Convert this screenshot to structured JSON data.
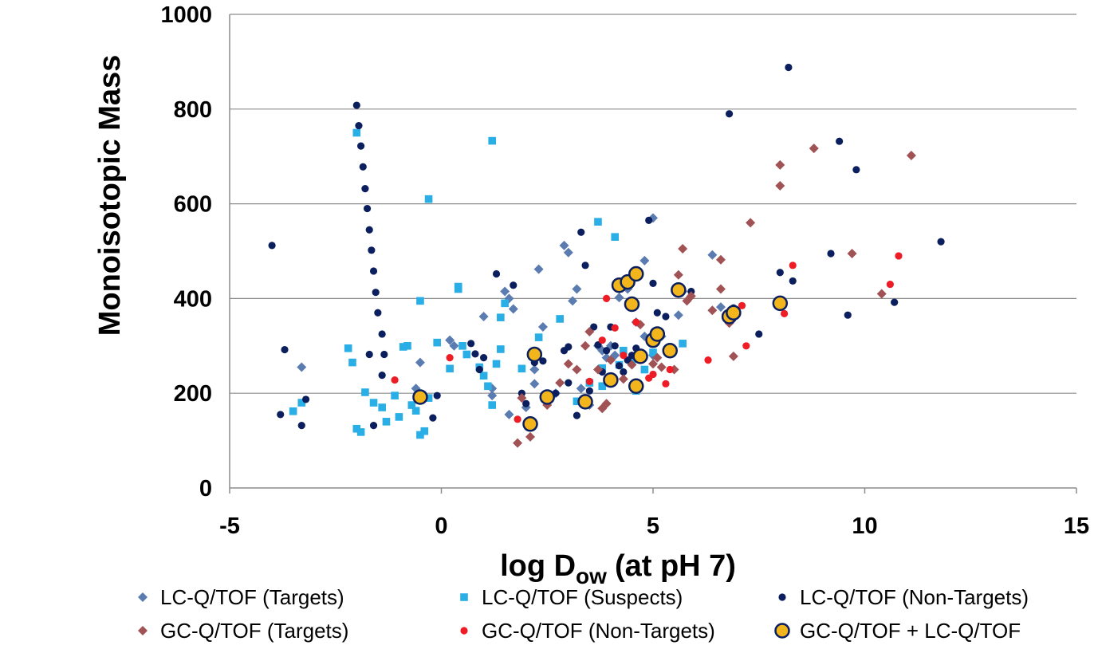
{
  "chart_data": {
    "type": "scatter",
    "title": "",
    "xlabel": "log D",
    "xlabel_sub": "ow",
    "xlabel_suffix": "(at pH 7)",
    "ylabel": "Monoisotopic Mass",
    "xlim": [
      -5,
      15
    ],
    "ylim": [
      0,
      1000
    ],
    "xticks": [
      -5,
      0,
      5,
      10,
      15
    ],
    "yticks": [
      0,
      200,
      400,
      600,
      800,
      1000
    ],
    "grid": "horizontal",
    "legend_position": "bottom",
    "series": [
      {
        "name": "LC-Q/TOF (Targets)",
        "marker": "diamond",
        "color": "#5b7cb0",
        "points": [
          [
            -3.3,
            255
          ],
          [
            0.2,
            312
          ],
          [
            0.3,
            300
          ],
          [
            -0.5,
            265
          ],
          [
            -0.6,
            210
          ],
          [
            1.0,
            362
          ],
          [
            1.5,
            415
          ],
          [
            1.6,
            400
          ],
          [
            1.7,
            378
          ],
          [
            1.2,
            210
          ],
          [
            1.2,
            195
          ],
          [
            1.6,
            155
          ],
          [
            2.0,
            170
          ],
          [
            2.3,
            462
          ],
          [
            2.2,
            250
          ],
          [
            2.2,
            220
          ],
          [
            2.4,
            340
          ],
          [
            2.9,
            512
          ],
          [
            3.0,
            497
          ],
          [
            3.1,
            395
          ],
          [
            3.2,
            420
          ],
          [
            3.3,
            210
          ],
          [
            3.5,
            175
          ],
          [
            3.7,
            300
          ],
          [
            3.8,
            290
          ],
          [
            3.9,
            275
          ],
          [
            4.0,
            300
          ],
          [
            4.1,
            280
          ],
          [
            4.2,
            402
          ],
          [
            4.4,
            420
          ],
          [
            4.5,
            390
          ],
          [
            4.6,
            350
          ],
          [
            4.8,
            320
          ],
          [
            4.8,
            480
          ],
          [
            5.0,
            570
          ],
          [
            5.2,
            320
          ],
          [
            5.0,
            280
          ],
          [
            5.6,
            365
          ],
          [
            5.7,
            415
          ],
          [
            6.4,
            492
          ],
          [
            6.6,
            382
          ],
          [
            2.7,
            200
          ],
          [
            2.5,
            190
          ]
        ]
      },
      {
        "name": "LC-Q/TOF (Suspects)",
        "marker": "square",
        "color": "#29aee6",
        "points": [
          [
            -2.2,
            295
          ],
          [
            -2.1,
            265
          ],
          [
            -2.0,
            750
          ],
          [
            -2.0,
            125
          ],
          [
            -1.9,
            118
          ],
          [
            -1.8,
            202
          ],
          [
            -1.6,
            180
          ],
          [
            -1.4,
            170
          ],
          [
            -1.3,
            140
          ],
          [
            -1.1,
            195
          ],
          [
            -1.0,
            150
          ],
          [
            -0.8,
            300
          ],
          [
            -0.7,
            175
          ],
          [
            -0.6,
            163
          ],
          [
            -0.5,
            112
          ],
          [
            -0.4,
            120
          ],
          [
            -0.3,
            190
          ],
          [
            -0.3,
            610
          ],
          [
            -0.5,
            395
          ],
          [
            -0.1,
            307
          ],
          [
            0.2,
            252
          ],
          [
            0.4,
            420
          ],
          [
            0.4,
            425
          ],
          [
            0.5,
            300
          ],
          [
            0.9,
            255
          ],
          [
            1.0,
            237
          ],
          [
            1.1,
            215
          ],
          [
            1.2,
            175
          ],
          [
            1.3,
            262
          ],
          [
            1.4,
            360
          ],
          [
            1.4,
            293
          ],
          [
            1.5,
            390
          ],
          [
            1.2,
            733
          ],
          [
            1.9,
            252
          ],
          [
            2.3,
            318
          ],
          [
            2.8,
            357
          ],
          [
            3.2,
            183
          ],
          [
            3.5,
            222
          ],
          [
            3.8,
            253
          ],
          [
            3.8,
            215
          ],
          [
            4.0,
            230
          ],
          [
            4.1,
            530
          ],
          [
            4.2,
            260
          ],
          [
            4.3,
            290
          ],
          [
            4.5,
            267
          ],
          [
            4.6,
            205
          ],
          [
            5.0,
            286
          ],
          [
            5.7,
            305
          ],
          [
            3.7,
            562
          ],
          [
            4.8,
            250
          ],
          [
            -0.9,
            298
          ],
          [
            -3.5,
            162
          ],
          [
            -3.3,
            180
          ],
          [
            0.6,
            282
          ]
        ]
      },
      {
        "name": "LC-Q/TOF (Non-Targets)",
        "marker": "circle",
        "color": "#0b1f5e",
        "points": [
          [
            -4.0,
            512
          ],
          [
            -3.8,
            155
          ],
          [
            -3.7,
            292
          ],
          [
            -3.3,
            132
          ],
          [
            -3.2,
            187
          ],
          [
            -2.0,
            808
          ],
          [
            -1.95,
            765
          ],
          [
            -1.9,
            722
          ],
          [
            -1.85,
            678
          ],
          [
            -1.8,
            632
          ],
          [
            -1.75,
            590
          ],
          [
            -1.7,
            545
          ],
          [
            -1.65,
            502
          ],
          [
            -1.6,
            458
          ],
          [
            -1.55,
            413
          ],
          [
            -1.5,
            370
          ],
          [
            -1.4,
            325
          ],
          [
            -1.35,
            282
          ],
          [
            -1.4,
            238
          ],
          [
            -1.7,
            282
          ],
          [
            -1.6,
            132
          ],
          [
            -0.2,
            148
          ],
          [
            -0.1,
            195
          ],
          [
            0.7,
            305
          ],
          [
            0.8,
            283
          ],
          [
            0.9,
            250
          ],
          [
            1.0,
            275
          ],
          [
            1.3,
            452
          ],
          [
            1.7,
            428
          ],
          [
            1.9,
            200
          ],
          [
            2.0,
            178
          ],
          [
            2.2,
            265
          ],
          [
            2.4,
            268
          ],
          [
            2.9,
            290
          ],
          [
            3.0,
            298
          ],
          [
            3.0,
            222
          ],
          [
            3.2,
            153
          ],
          [
            3.3,
            540
          ],
          [
            3.4,
            470
          ],
          [
            3.6,
            340
          ],
          [
            3.7,
            302
          ],
          [
            3.8,
            245
          ],
          [
            3.9,
            290
          ],
          [
            4.0,
            340
          ],
          [
            4.1,
            300
          ],
          [
            4.2,
            258
          ],
          [
            4.3,
            245
          ],
          [
            4.4,
            270
          ],
          [
            4.5,
            280
          ],
          [
            4.6,
            295
          ],
          [
            4.9,
            565
          ],
          [
            5.0,
            432
          ],
          [
            5.1,
            370
          ],
          [
            5.3,
            362
          ],
          [
            5.9,
            415
          ],
          [
            6.8,
            790
          ],
          [
            6.9,
            380
          ],
          [
            7.5,
            325
          ],
          [
            8.2,
            888
          ],
          [
            8.0,
            455
          ],
          [
            8.3,
            437
          ],
          [
            9.2,
            495
          ],
          [
            9.4,
            732
          ],
          [
            9.6,
            365
          ],
          [
            9.8,
            672
          ],
          [
            10.7,
            392
          ],
          [
            11.8,
            520
          ],
          [
            2.7,
            200
          ],
          [
            3.5,
            205
          ]
        ]
      },
      {
        "name": "GC-Q/TOF (Targets)",
        "marker": "diamond",
        "color": "#a05254",
        "points": [
          [
            1.8,
            95
          ],
          [
            1.9,
            190
          ],
          [
            2.1,
            108
          ],
          [
            2.5,
            175
          ],
          [
            2.8,
            222
          ],
          [
            3.0,
            262
          ],
          [
            3.2,
            250
          ],
          [
            3.5,
            330
          ],
          [
            3.7,
            250
          ],
          [
            3.8,
            168
          ],
          [
            3.9,
            178
          ],
          [
            4.0,
            270
          ],
          [
            4.3,
            230
          ],
          [
            4.5,
            260
          ],
          [
            4.7,
            345
          ],
          [
            5.0,
            262
          ],
          [
            5.1,
            275
          ],
          [
            5.5,
            250
          ],
          [
            5.7,
            505
          ],
          [
            5.8,
            395
          ],
          [
            5.9,
            405
          ],
          [
            6.4,
            375
          ],
          [
            6.6,
            482
          ],
          [
            6.6,
            420
          ],
          [
            6.8,
            348
          ],
          [
            6.9,
            278
          ],
          [
            7.3,
            560
          ],
          [
            8.0,
            682
          ],
          [
            8.0,
            638
          ],
          [
            8.8,
            717
          ],
          [
            9.7,
            495
          ],
          [
            10.4,
            410
          ],
          [
            11.1,
            702
          ],
          [
            5.2,
            255
          ],
          [
            3.4,
            300
          ],
          [
            5.6,
            450
          ]
        ]
      },
      {
        "name": "GC-Q/TOF (Non-Targets)",
        "marker": "circle",
        "color": "#ee1c25",
        "points": [
          [
            -1.1,
            228
          ],
          [
            0.2,
            275
          ],
          [
            1.8,
            145
          ],
          [
            3.5,
            225
          ],
          [
            3.8,
            312
          ],
          [
            3.9,
            400
          ],
          [
            4.1,
            338
          ],
          [
            4.3,
            280
          ],
          [
            4.6,
            350
          ],
          [
            4.9,
            232
          ],
          [
            5.0,
            240
          ],
          [
            5.3,
            220
          ],
          [
            5.4,
            250
          ],
          [
            6.3,
            270
          ],
          [
            7.1,
            385
          ],
          [
            7.2,
            300
          ],
          [
            8.1,
            368
          ],
          [
            8.3,
            470
          ],
          [
            10.6,
            430
          ],
          [
            10.8,
            490
          ]
        ]
      },
      {
        "name": "GC-Q/TOF + LC-Q/TOF",
        "marker": "circle-large",
        "color": "#f2b51c",
        "edge": "#0b1f5e",
        "points": [
          [
            -0.5,
            192
          ],
          [
            2.1,
            135
          ],
          [
            2.2,
            282
          ],
          [
            2.5,
            192
          ],
          [
            3.4,
            182
          ],
          [
            4.0,
            228
          ],
          [
            4.2,
            428
          ],
          [
            4.4,
            435
          ],
          [
            4.5,
            388
          ],
          [
            4.6,
            452
          ],
          [
            4.6,
            215
          ],
          [
            4.7,
            278
          ],
          [
            5.0,
            312
          ],
          [
            5.1,
            325
          ],
          [
            5.4,
            290
          ],
          [
            5.6,
            418
          ],
          [
            6.8,
            362
          ],
          [
            6.9,
            370
          ],
          [
            8.0,
            390
          ]
        ]
      }
    ]
  }
}
